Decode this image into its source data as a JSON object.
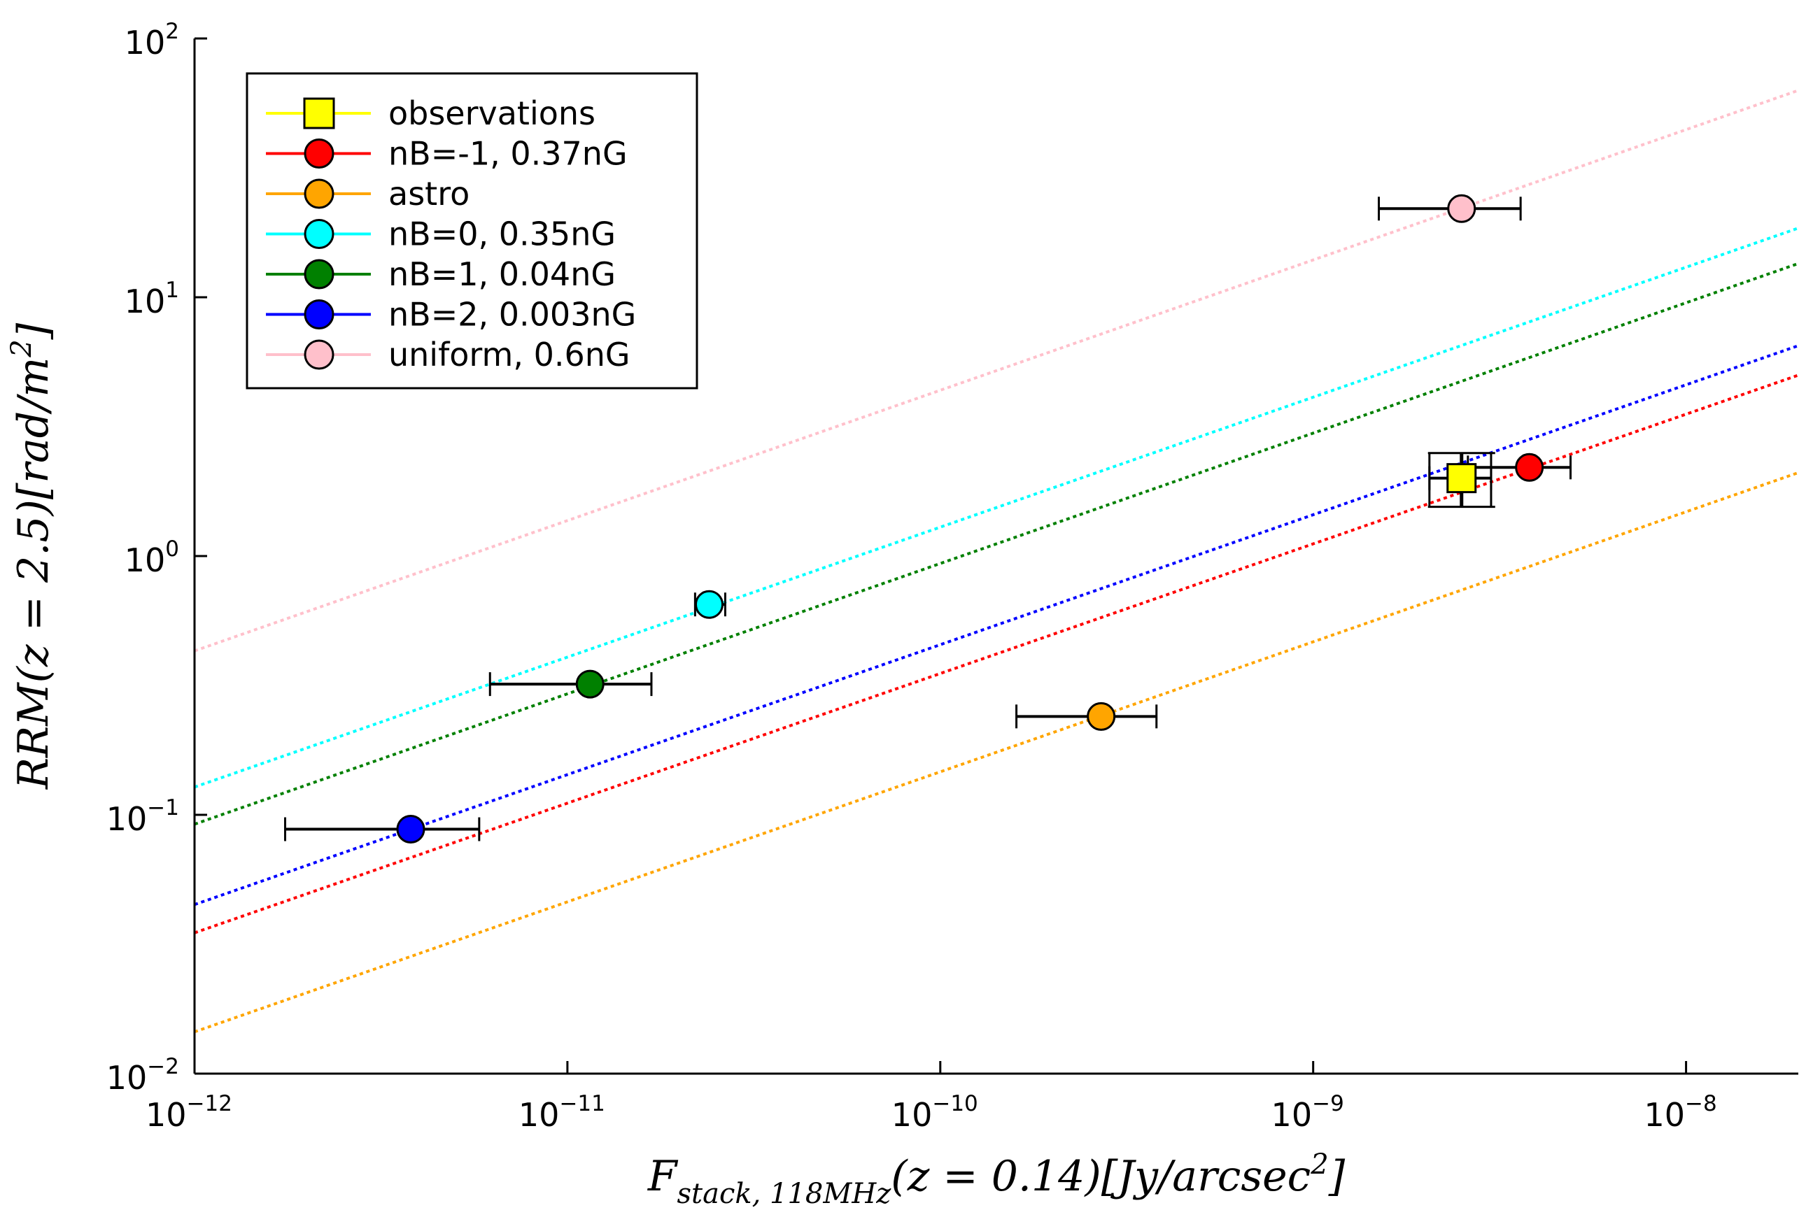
{
  "chart_data": {
    "type": "scatter",
    "xlabel": "F_stack,118MHz(z = 0.14)[Jy/arcsec^2]",
    "xlabel_parts": {
      "main": "F",
      "sub": "stack, 118MHz",
      "rest": "(z = 0.14)[Jy/arcsec",
      "sup": "2",
      "end": "]"
    },
    "ylabel": "RRM(z = 2.5)[rad/m^2]",
    "ylabel_parts": {
      "main": "RRM(z = 2.5)[rad/m",
      "sup": "2",
      "end": "]"
    },
    "xscale": "log",
    "yscale": "log",
    "xlim": [
      1e-12,
      2e-08
    ],
    "ylim": [
      0.01,
      100
    ],
    "x_ticks": [
      {
        "value": 1e-12,
        "base": "10",
        "exp": "−12"
      },
      {
        "value": 1e-11,
        "base": "10",
        "exp": "−11"
      },
      {
        "value": 1e-10,
        "base": "10",
        "exp": "−10"
      },
      {
        "value": 1e-09,
        "base": "10",
        "exp": "−9"
      },
      {
        "value": 1e-08,
        "base": "10",
        "exp": "−8"
      }
    ],
    "y_ticks": [
      {
        "value": 0.01,
        "base": "10",
        "exp": "−2"
      },
      {
        "value": 0.1,
        "base": "10",
        "exp": "−1"
      },
      {
        "value": 1,
        "base": "10",
        "exp": "0"
      },
      {
        "value": 10,
        "base": "10",
        "exp": "1"
      },
      {
        "value": 100,
        "base": "10",
        "exp": "2"
      }
    ],
    "grid": false,
    "legend_position": "top-left",
    "series": [
      {
        "name": "observations",
        "color": "#ffff00",
        "marker": "square",
        "x": 2.5e-09,
        "y": 2.0,
        "xerr": [
          2.05e-09,
          3e-09
        ],
        "yerr": [
          1.55,
          2.5
        ],
        "fit_line": null
      },
      {
        "name": "nB=-1, 0.37nG",
        "color": "#ff0000",
        "marker": "circle",
        "x": 3.8e-09,
        "y": 2.2,
        "xerr": [
          2.6e-09,
          4.9e-09
        ],
        "yerr": null,
        "fit_line": {
          "from": [
            1e-12,
            0.035
          ],
          "to": [
            2e-08,
            5.0
          ]
        }
      },
      {
        "name": "astro",
        "color": "#ffa500",
        "marker": "circle",
        "x": 2.7e-10,
        "y": 0.24,
        "xerr": [
          1.6e-10,
          3.8e-10
        ],
        "yerr": null,
        "fit_line": {
          "from": [
            1e-12,
            0.0145
          ],
          "to": [
            2e-08,
            2.1
          ]
        }
      },
      {
        "name": "nB=0, 0.35nG",
        "color": "#00ffff",
        "marker": "circle",
        "x": 2.4e-11,
        "y": 0.65,
        "xerr": [
          2.2e-11,
          2.65e-11
        ],
        "yerr": null,
        "fit_line": {
          "from": [
            1e-12,
            0.128
          ],
          "to": [
            2e-08,
            18.5
          ]
        }
      },
      {
        "name": "nB=1, 0.04nG",
        "color": "#008000",
        "marker": "circle",
        "x": 1.15e-11,
        "y": 0.32,
        "xerr": [
          6.2e-12,
          1.68e-11
        ],
        "yerr": null,
        "fit_line": {
          "from": [
            1e-12,
            0.092
          ],
          "to": [
            2e-08,
            13.5
          ]
        }
      },
      {
        "name": "nB=2, 0.003nG",
        "color": "#0000ff",
        "marker": "circle",
        "x": 3.8e-12,
        "y": 0.088,
        "xerr": [
          1.75e-12,
          5.8e-12
        ],
        "yerr": null,
        "fit_line": {
          "from": [
            1e-12,
            0.045
          ],
          "to": [
            2e-08,
            6.5
          ]
        }
      },
      {
        "name": "uniform, 0.6nG",
        "color": "#ffc0cb",
        "marker": "circle",
        "x": 2.5e-09,
        "y": 22.0,
        "xerr": [
          1.5e-09,
          3.6e-09
        ],
        "yerr": null,
        "fit_line": {
          "from": [
            1e-12,
            0.43
          ],
          "to": [
            2e-08,
            63.0
          ]
        }
      }
    ]
  }
}
